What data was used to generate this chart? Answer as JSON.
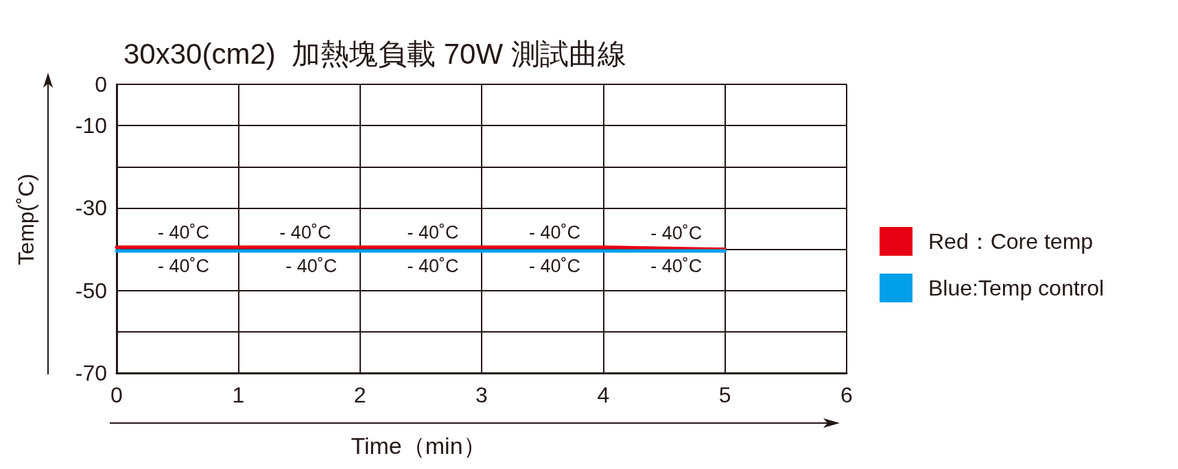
{
  "chart_data": {
    "type": "line",
    "title": "30x30(cm2)  加熱塊負載 70W 測試曲線",
    "xlabel": "Time（min）",
    "ylabel": "Temp(˚C)",
    "series": [
      {
        "name": "Red：Core temp",
        "color": "#e60012",
        "x": [
          0,
          4,
          5
        ],
        "values": [
          -39.5,
          -39.5,
          -40
        ]
      },
      {
        "name": "Blue:Temp control",
        "color": "#00a0e9",
        "x": [
          0,
          5
        ],
        "values": [
          -40.4,
          -40.4
        ]
      }
    ],
    "xlim": [
      0,
      6
    ],
    "xticks": [
      0,
      1,
      2,
      3,
      4,
      5,
      6
    ],
    "ylim": [
      -70,
      0
    ],
    "yticks": [
      -70,
      {
        "value": -60,
        "label": null
      },
      -50,
      {
        "value": -40,
        "label": null
      },
      -30,
      {
        "value": -20,
        "label": null
      },
      -10,
      0
    ],
    "grid": true,
    "legend": "right",
    "marker": "none",
    "line_style": "solid",
    "annotations": [
      {
        "text": "- 40˚C",
        "x": 0.55,
        "y": -39.5
      },
      {
        "text": "- 40˚C",
        "x": 1.55,
        "y": -39.5
      },
      {
        "text": "- 40˚C",
        "x": 2.6,
        "y": -39.5
      },
      {
        "text": "- 40˚C",
        "x": 3.6,
        "y": -39.5
      },
      {
        "text": "- 40˚C",
        "x": 4.6,
        "y": -39.8
      },
      {
        "text": "- 40˚C",
        "x": 0.55,
        "y": -40.4
      },
      {
        "text": "- 40˚C",
        "x": 1.6,
        "y": -40.4
      },
      {
        "text": "- 40˚C",
        "x": 2.6,
        "y": -40.4
      },
      {
        "text": "- 40˚C",
        "x": 3.6,
        "y": -40.4
      },
      {
        "text": "- 40˚C",
        "x": 4.6,
        "y": -40.4
      }
    ]
  }
}
